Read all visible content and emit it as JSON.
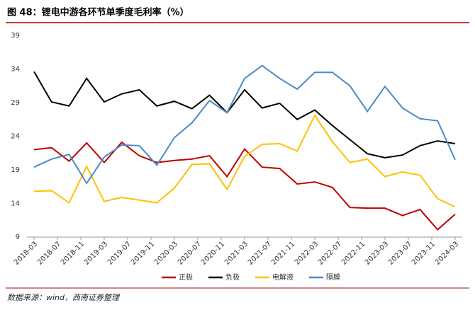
{
  "chart_data": {
    "type": "line",
    "title": "图 48：锂电中游各环节单季度毛利率（%）",
    "source": "数据来源：wind，西南证券整理",
    "x": [
      "2018-03",
      "2018-06",
      "2018-09",
      "2018-12",
      "2019-03",
      "2019-06",
      "2019-09",
      "2019-12",
      "2020-03",
      "2020-06",
      "2020-09",
      "2020-12",
      "2021-03",
      "2021-06",
      "2021-09",
      "2021-12",
      "2022-03",
      "2022-06",
      "2022-09",
      "2022-12",
      "2023-03",
      "2023-06",
      "2023-09",
      "2023-12",
      "2024-03"
    ],
    "xticks": [
      "2018-03",
      "2018-07",
      "2018-11",
      "2019-03",
      "2019-07",
      "2019-11",
      "2020-03",
      "2020-07",
      "2020-11",
      "2021-03",
      "2021-07",
      "2021-11",
      "2022-03",
      "2022-07",
      "2022-11",
      "2023-03",
      "2023-07",
      "2023-11",
      "2024-03"
    ],
    "ylim": [
      9,
      39
    ],
    "yticks": [
      9,
      14,
      19,
      24,
      29,
      34,
      39
    ],
    "legend": "bottom",
    "series": [
      {
        "name": "正极",
        "color": "#c00000",
        "values": [
          22.0,
          22.3,
          20.3,
          23.0,
          20.1,
          23.1,
          21.1,
          20.1,
          20.4,
          20.6,
          21.1,
          18.0,
          22.1,
          19.4,
          19.2,
          16.9,
          17.2,
          16.4,
          13.4,
          13.3,
          13.3,
          12.2,
          13.1,
          10.1,
          12.4
        ]
      },
      {
        "name": "负极",
        "color": "#000000",
        "values": [
          33.6,
          29.1,
          28.5,
          32.6,
          29.1,
          30.3,
          30.9,
          28.5,
          29.2,
          28.1,
          30.1,
          27.5,
          30.9,
          28.2,
          28.9,
          26.5,
          27.9,
          25.6,
          23.5,
          21.4,
          20.8,
          21.2,
          22.6,
          23.3,
          22.9
        ]
      },
      {
        "name": "电解液",
        "color": "#ffc000",
        "values": [
          15.8,
          15.9,
          14.1,
          19.5,
          14.3,
          14.9,
          14.5,
          14.1,
          16.3,
          19.8,
          19.9,
          16.1,
          21.0,
          22.8,
          22.9,
          21.8,
          27.1,
          23.2,
          20.1,
          20.6,
          18.0,
          18.7,
          18.2,
          14.7,
          13.5
        ]
      },
      {
        "name": "隔膜",
        "color": "#4a8ac8",
        "values": [
          19.4,
          20.6,
          21.3,
          17.0,
          20.9,
          22.7,
          22.6,
          19.7,
          23.8,
          26.0,
          29.3,
          27.5,
          32.6,
          34.5,
          32.6,
          31.0,
          33.5,
          33.5,
          31.5,
          27.7,
          31.4,
          28.2,
          26.6,
          26.3,
          20.5
        ]
      }
    ]
  }
}
